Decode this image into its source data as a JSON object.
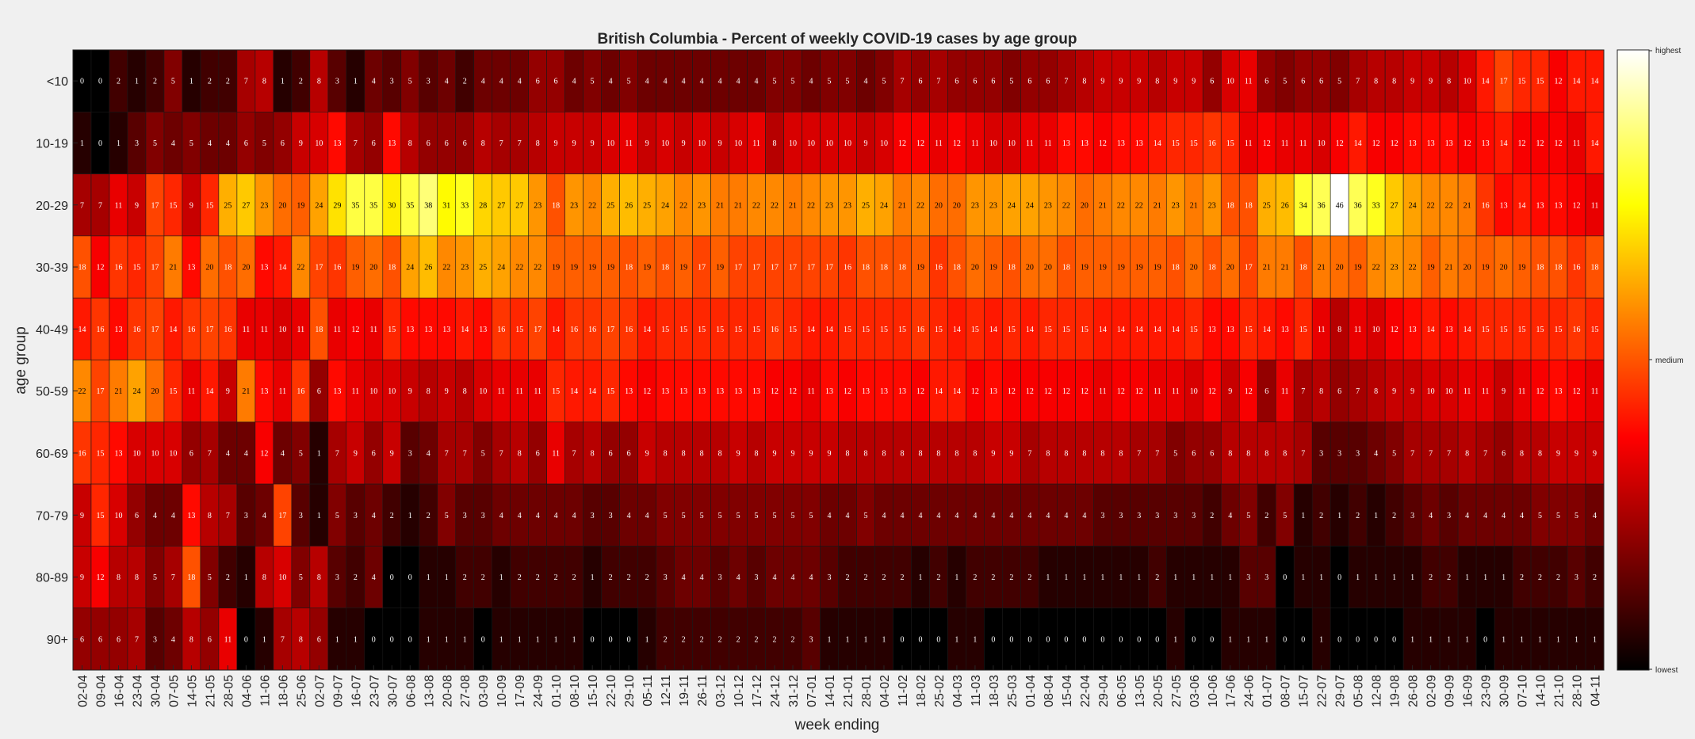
{
  "chart_data": {
    "type": "heatmap",
    "title": "British Columbia - Percent of weekly COVID-19 cases by age group",
    "xlabel": "week ending",
    "ylabel": "age group",
    "colormap": "hot",
    "colorbar": {
      "tick_labels": [
        "highest",
        "medium",
        "lowest"
      ],
      "colors": [
        "#000000",
        "#ff0000",
        "#ffff00",
        "#ffffff"
      ]
    },
    "rows": [
      "<10",
      "10-19",
      "20-29",
      "30-39",
      "40-49",
      "50-59",
      "60-69",
      "70-79",
      "80-89",
      "90+"
    ],
    "columns": [
      "02-04",
      "09-04",
      "16-04",
      "23-04",
      "30-04",
      "07-05",
      "14-05",
      "21-05",
      "28-05",
      "04-06",
      "11-06",
      "18-06",
      "25-06",
      "02-07",
      "09-07",
      "16-07",
      "23-07",
      "30-07",
      "06-08",
      "13-08",
      "20-08",
      "27-08",
      "03-09",
      "10-09",
      "17-09",
      "24-09",
      "01-10",
      "08-10",
      "15-10",
      "22-10",
      "29-10",
      "05-11",
      "12-11",
      "19-11",
      "26-11",
      "03-12",
      "10-12",
      "17-12",
      "24-12",
      "31-12",
      "07-01",
      "14-01",
      "21-01",
      "28-01",
      "04-02",
      "11-02",
      "18-02",
      "25-02",
      "04-03",
      "11-03",
      "18-03",
      "25-03",
      "01-04",
      "08-04",
      "15-04",
      "22-04",
      "29-04",
      "06-05",
      "13-05",
      "20-05",
      "27-05",
      "03-06",
      "10-06",
      "17-06",
      "24-06",
      "01-07",
      "08-07",
      "15-07",
      "22-07",
      "29-07",
      "05-08",
      "12-08",
      "19-08",
      "26-08",
      "02-09",
      "09-09",
      "16-09",
      "23-09",
      "30-09",
      "07-10",
      "14-10",
      "21-10",
      "28-10",
      "04-11"
    ],
    "values": [
      [
        0,
        0,
        2,
        1,
        2,
        5,
        1,
        2,
        2,
        7,
        8,
        1,
        2,
        8,
        3,
        1,
        4,
        3,
        5,
        3,
        4,
        2,
        4,
        4,
        4,
        6,
        6,
        4,
        5,
        4,
        5,
        4,
        4,
        4,
        4,
        4,
        4,
        4,
        5,
        5,
        4,
        5,
        5,
        4,
        5,
        7,
        6,
        7,
        6,
        6,
        6,
        5,
        6,
        6,
        7,
        8,
        9,
        9,
        9,
        8,
        9,
        9,
        6,
        10,
        11,
        6,
        5,
        6,
        6,
        5,
        7,
        8,
        8,
        9,
        9,
        8,
        10,
        14,
        17,
        15,
        15,
        12,
        14,
        14
      ],
      [
        1,
        0,
        1,
        3,
        5,
        4,
        5,
        4,
        4,
        6,
        5,
        6,
        9,
        10,
        13,
        7,
        6,
        13,
        8,
        6,
        6,
        6,
        8,
        7,
        7,
        8,
        9,
        9,
        9,
        10,
        11,
        9,
        10,
        9,
        10,
        9,
        10,
        11,
        8,
        10,
        10,
        10,
        10,
        9,
        10,
        12,
        12,
        11,
        12,
        11,
        10,
        10,
        11,
        11,
        13,
        13,
        12,
        13,
        13,
        14,
        15,
        15,
        16,
        15,
        11,
        12,
        11,
        11,
        10,
        12,
        14,
        12,
        12,
        13,
        13,
        13,
        12,
        13,
        14,
        12,
        12,
        12,
        11,
        14
      ],
      [
        7,
        7,
        11,
        9,
        17,
        15,
        9,
        15,
        25,
        27,
        23,
        20,
        19,
        24,
        29,
        35,
        35,
        30,
        35,
        38,
        31,
        33,
        28,
        27,
        27,
        23,
        18,
        23,
        22,
        25,
        26,
        25,
        24,
        22,
        23,
        21,
        21,
        22,
        22,
        21,
        22,
        23,
        23,
        25,
        24,
        21,
        22,
        20,
        20,
        23,
        23,
        24,
        24,
        23,
        22,
        20,
        21,
        22,
        22,
        21,
        23,
        21,
        23,
        18,
        18,
        25,
        26,
        34,
        36,
        46,
        36,
        33,
        27,
        24,
        22,
        22,
        21,
        16,
        13,
        14,
        13,
        13,
        12,
        11
      ],
      [
        18,
        12,
        16,
        15,
        17,
        21,
        13,
        20,
        18,
        20,
        13,
        14,
        22,
        17,
        16,
        19,
        20,
        18,
        24,
        26,
        22,
        23,
        25,
        24,
        22,
        22,
        19,
        19,
        19,
        19,
        18,
        19,
        18,
        19,
        17,
        19,
        17,
        17,
        17,
        17,
        17,
        17,
        16,
        18,
        18,
        18,
        19,
        16,
        18,
        20,
        19,
        18,
        20,
        20,
        18,
        19,
        19,
        19,
        19,
        19,
        18,
        20,
        18,
        20,
        17,
        21,
        21,
        18,
        21,
        20,
        19,
        22,
        23,
        22,
        19,
        21,
        20,
        19,
        20,
        19,
        18,
        18,
        16,
        18
      ],
      [
        14,
        16,
        13,
        16,
        17,
        14,
        16,
        17,
        16,
        11,
        11,
        10,
        11,
        18,
        11,
        12,
        11,
        15,
        13,
        13,
        13,
        14,
        13,
        16,
        15,
        17,
        14,
        16,
        16,
        17,
        16,
        14,
        15,
        15,
        15,
        15,
        15,
        15,
        16,
        15,
        14,
        14,
        15,
        15,
        15,
        15,
        16,
        15,
        14,
        15,
        14,
        15,
        14,
        15,
        15,
        15,
        14,
        14,
        14,
        14,
        14,
        15,
        13,
        13,
        15,
        14,
        13,
        15,
        11,
        8,
        11,
        10,
        12,
        13,
        14,
        13,
        14,
        15,
        15,
        15,
        15,
        15,
        16,
        15
      ],
      [
        22,
        17,
        21,
        24,
        20,
        15,
        11,
        14,
        9,
        21,
        13,
        11,
        16,
        6,
        13,
        11,
        10,
        10,
        9,
        8,
        9,
        8,
        10,
        11,
        11,
        11,
        15,
        14,
        14,
        15,
        13,
        12,
        13,
        13,
        13,
        13,
        13,
        13,
        12,
        12,
        11,
        13,
        12,
        13,
        13,
        13,
        12,
        14,
        14,
        12,
        13,
        12,
        12,
        12,
        12,
        12,
        11,
        12,
        12,
        11,
        11,
        10,
        12,
        9,
        12,
        6,
        11,
        7,
        8,
        6,
        7,
        8,
        9,
        9,
        10,
        10,
        11,
        11,
        9,
        11,
        12,
        13,
        12,
        11
      ],
      [
        16,
        15,
        13,
        10,
        10,
        10,
        6,
        7,
        4,
        4,
        12,
        4,
        5,
        1,
        7,
        9,
        6,
        9,
        3,
        4,
        7,
        7,
        5,
        7,
        8,
        6,
        11,
        7,
        8,
        6,
        6,
        9,
        8,
        8,
        8,
        8,
        9,
        8,
        9,
        9,
        9,
        9,
        8,
        8,
        8,
        8,
        8,
        8,
        8,
        8,
        9,
        9,
        7,
        8,
        8,
        8,
        8,
        8,
        7,
        7,
        5,
        6,
        6,
        8,
        8,
        8,
        8,
        7,
        3,
        3,
        3,
        4,
        5,
        7,
        7,
        7,
        8,
        7,
        6,
        8,
        8,
        9,
        9,
        9
      ],
      [
        9,
        15,
        10,
        6,
        4,
        4,
        13,
        8,
        7,
        3,
        4,
        17,
        3,
        1,
        5,
        3,
        4,
        2,
        1,
        2,
        5,
        3,
        3,
        4,
        4,
        4,
        4,
        4,
        3,
        3,
        4,
        4,
        5,
        5,
        5,
        5,
        5,
        5,
        5,
        5,
        5,
        4,
        4,
        5,
        4,
        4,
        4,
        4,
        4,
        4,
        4,
        4,
        4,
        4,
        4,
        4,
        3,
        3,
        3,
        3,
        3,
        3,
        2,
        4,
        5,
        2,
        5,
        1,
        2,
        1,
        2,
        1,
        2,
        3,
        4,
        3,
        4,
        4,
        4,
        4,
        5,
        5,
        5,
        4
      ],
      [
        9,
        12,
        8,
        8,
        5,
        7,
        18,
        5,
        2,
        1,
        8,
        10,
        5,
        8,
        3,
        2,
        4,
        0,
        0,
        1,
        1,
        2,
        2,
        1,
        2,
        2,
        2,
        2,
        1,
        2,
        2,
        2,
        3,
        4,
        4,
        3,
        4,
        3,
        4,
        4,
        4,
        3,
        2,
        2,
        2,
        2,
        1,
        2,
        1,
        2,
        2,
        2,
        2,
        1,
        1,
        1,
        1,
        1,
        1,
        2,
        1,
        1,
        1,
        1,
        3,
        3,
        0,
        1,
        1,
        0,
        1,
        1,
        1,
        1,
        2,
        2,
        1,
        1,
        1,
        2,
        2,
        2,
        3,
        2
      ],
      [
        6,
        6,
        6,
        7,
        3,
        4,
        8,
        6,
        11,
        0,
        1,
        7,
        8,
        6,
        1,
        1,
        0,
        0,
        0,
        1,
        1,
        1,
        0,
        1,
        1,
        1,
        1,
        1,
        0,
        0,
        0,
        1,
        2,
        2,
        2,
        2,
        2,
        2,
        2,
        2,
        3,
        1,
        1,
        1,
        1,
        0,
        0,
        0,
        1,
        1,
        0,
        0,
        0,
        0,
        0,
        0,
        0,
        0,
        0,
        0,
        1,
        0,
        0,
        1,
        1,
        1,
        0,
        0,
        1,
        0,
        0,
        0,
        0,
        1,
        1,
        1,
        1,
        0,
        1,
        1,
        1,
        1,
        1,
        1
      ]
    ]
  }
}
